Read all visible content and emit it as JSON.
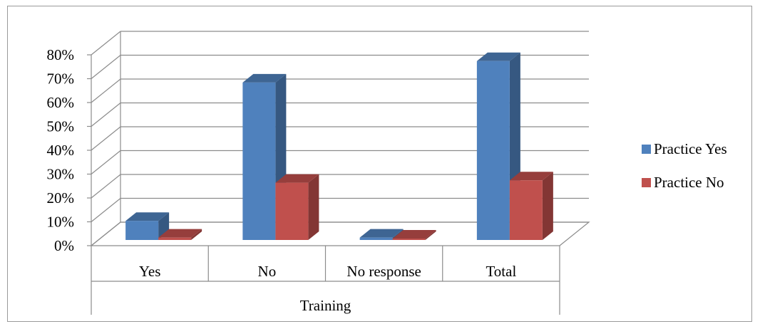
{
  "chart_data": {
    "type": "bar",
    "title": "",
    "xlabel": "Training",
    "ylabel": "",
    "categories": [
      "Yes",
      "No",
      "No response",
      "Total"
    ],
    "series": [
      {
        "name": "Practice Yes",
        "color": "#4F81BD",
        "values": [
          0.08,
          0.66,
          0.01,
          0.75
        ]
      },
      {
        "name": "Practice No",
        "color": "#C0504D",
        "values": [
          0.01,
          0.24,
          0.0,
          0.25
        ]
      }
    ],
    "yticks": [
      "0%",
      "10%",
      "20%",
      "30%",
      "40%",
      "50%",
      "60%",
      "70%",
      "80%"
    ],
    "ylim": [
      0,
      0.8
    ],
    "grid": true,
    "legend_position": "right",
    "three_d": true
  }
}
